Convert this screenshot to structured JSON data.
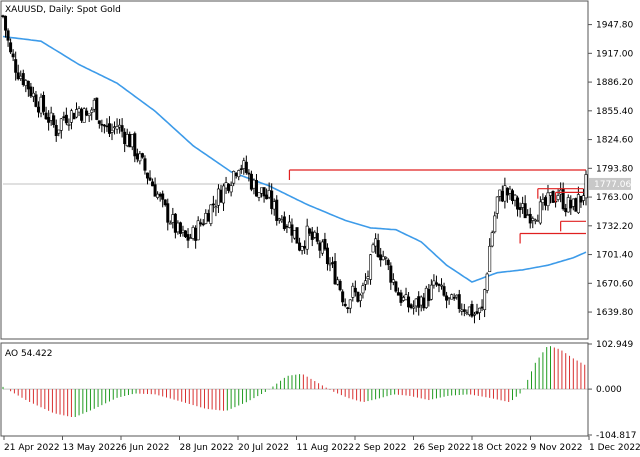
{
  "chart_data": [
    {
      "type": "candlestick",
      "title": "XAUUSD, Daily:  Spot Gold",
      "symbol": "XAUUSD",
      "timeframe": "Daily",
      "ylim": [
        1612,
        1972
      ],
      "y_ticks": [
        "1947.80",
        "1917.00",
        "1886.20",
        "1855.40",
        "1824.60",
        "1793.80",
        "1763.00",
        "1732.20",
        "1701.40",
        "1670.60",
        "1639.80"
      ],
      "current_price": "1777.06",
      "x_ticks": [
        "21 Apr 2022",
        "13 May 2022",
        "6 Jun 2022",
        "28 Jun 2022",
        "20 Jul 2022",
        "11 Aug 2022",
        "2 Sep 2022",
        "26 Sep 2022",
        "18 Oct 2022",
        "9 Nov 2022",
        "1 Dec 2022"
      ],
      "close_path_days": [
        0,
        3,
        6,
        9,
        12,
        15,
        18,
        21,
        24,
        27,
        30,
        33,
        36,
        39,
        42,
        45,
        48,
        51,
        54,
        57,
        60,
        63,
        66,
        69,
        72,
        75,
        78,
        81,
        84,
        87,
        90,
        93,
        96,
        99,
        102,
        105,
        108,
        111,
        114,
        117,
        120,
        123,
        126,
        129,
        132,
        135,
        138,
        141,
        144,
        147,
        150,
        153,
        156,
        159,
        162,
        165,
        168,
        171,
        174,
        177,
        180,
        183,
        186,
        189,
        192,
        195,
        198,
        201,
        204,
        207,
        210,
        213,
        216,
        219,
        222,
        225,
        228,
        230
      ],
      "close_path_values": [
        1957,
        1915,
        1898,
        1887,
        1872,
        1860,
        1848,
        1835,
        1850,
        1852,
        1858,
        1848,
        1862,
        1842,
        1832,
        1840,
        1830,
        1820,
        1802,
        1787,
        1772,
        1752,
        1740,
        1725,
        1718,
        1722,
        1735,
        1748,
        1760,
        1772,
        1785,
        1800,
        1790,
        1775,
        1768,
        1760,
        1745,
        1740,
        1730,
        1712,
        1722,
        1715,
        1705,
        1690,
        1675,
        1650,
        1660,
        1655,
        1680,
        1712,
        1700,
        1680,
        1660,
        1648,
        1645,
        1652,
        1660,
        1668,
        1655,
        1648,
        1648,
        1645,
        1638,
        1640,
        1710,
        1760,
        1770,
        1760,
        1750,
        1745,
        1748,
        1750,
        1760,
        1768,
        1755,
        1752,
        1762,
        1777
      ],
      "ma_days": [
        0,
        15,
        30,
        45,
        60,
        75,
        90,
        105,
        120,
        135,
        145,
        155,
        165,
        175,
        185,
        195,
        205,
        215,
        225,
        230
      ],
      "ma_values": [
        1935,
        1930,
        1905,
        1885,
        1855,
        1818,
        1790,
        1775,
        1755,
        1738,
        1730,
        1728,
        1715,
        1690,
        1672,
        1682,
        1685,
        1690,
        1698,
        1704
      ],
      "levels": [
        {
          "start_day": 113,
          "end_day": 230,
          "value": 1792
        },
        {
          "start_day": 211,
          "end_day": 229,
          "value": 1772
        },
        {
          "start_day": 218,
          "end_day": 229,
          "value": 1768
        },
        {
          "start_day": 220,
          "end_day": 230,
          "value": 1737
        },
        {
          "start_day": 204,
          "end_day": 230,
          "value": 1724
        }
      ],
      "colors": {
        "candle": "#000000",
        "ma": "#3d9be9",
        "level": "#e02020",
        "grid": "#d8d8d8"
      }
    },
    {
      "type": "histogram",
      "title": "AO 54.422",
      "ylim": [
        -104.817,
        102.949
      ],
      "y_ticks": [
        "102.949",
        "0.000",
        "-104.817"
      ],
      "ao_days": [
        0,
        10,
        20,
        28,
        36,
        45,
        52,
        60,
        70,
        80,
        88,
        96,
        104,
        112,
        118,
        124,
        130,
        136,
        142,
        148,
        154,
        160,
        168,
        176,
        184,
        192,
        200,
        205,
        210,
        215,
        220,
        225,
        230
      ],
      "ao_values": [
        5,
        -28,
        -55,
        -65,
        -45,
        -20,
        -10,
        -12,
        -28,
        -45,
        -50,
        -30,
        -5,
        30,
        35,
        15,
        -5,
        -20,
        -30,
        -22,
        -12,
        -15,
        -25,
        -15,
        -12,
        -20,
        -30,
        -5,
        60,
        100,
        90,
        70,
        54
      ],
      "colors": {
        "up": "#1f9a1f",
        "down": "#d83030",
        "zero": "#c8c8c8"
      }
    }
  ]
}
